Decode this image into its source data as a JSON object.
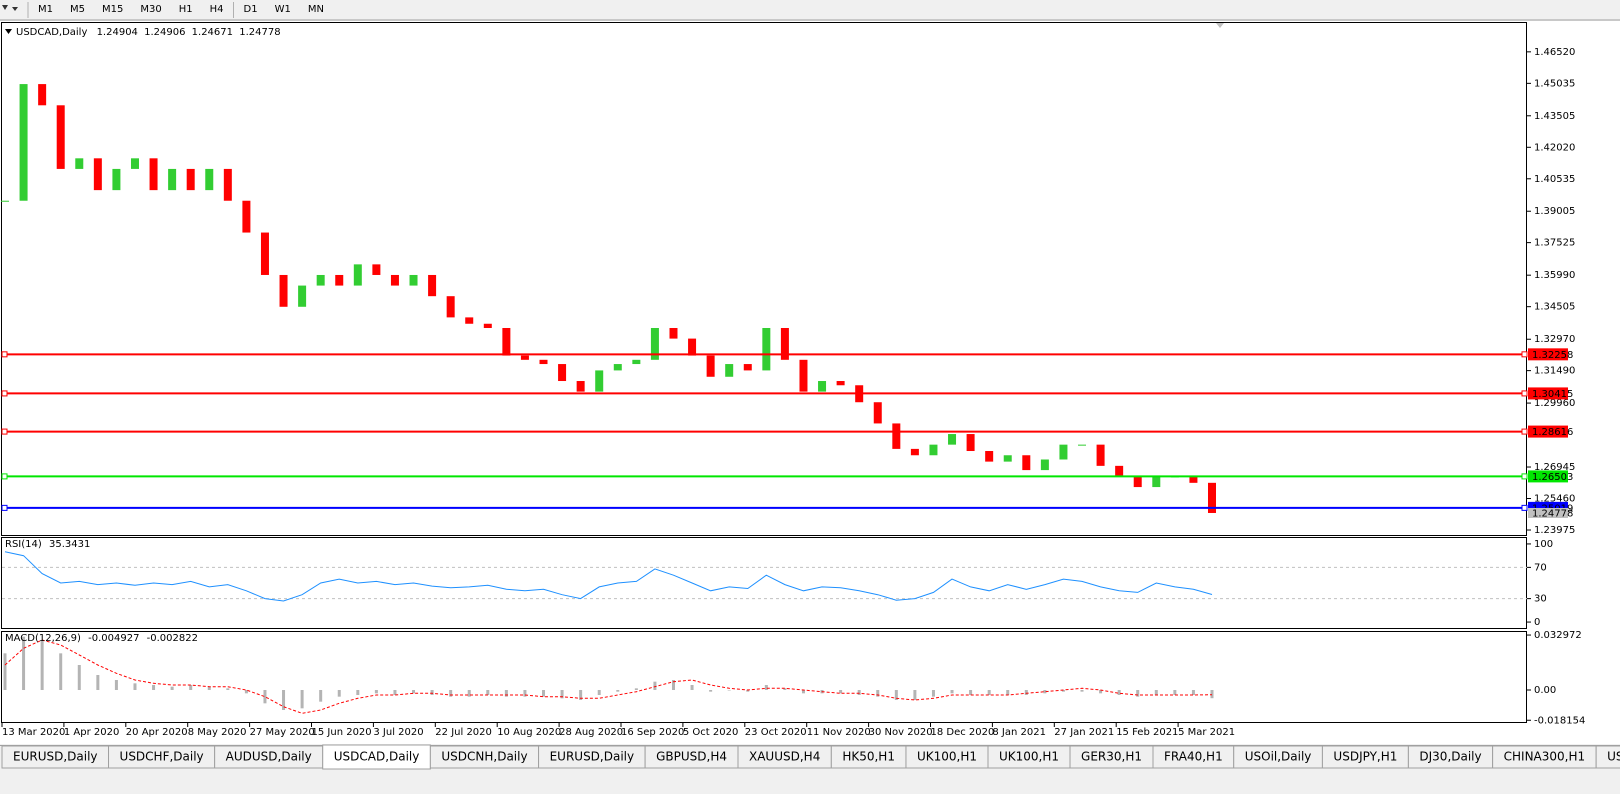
{
  "toolbar": {
    "timeframes": [
      "M1",
      "M5",
      "M15",
      "M30",
      "H1",
      "H4",
      "D1",
      "W1",
      "MN"
    ]
  },
  "chart_data": [
    {
      "type": "candlestick",
      "title": "USDCAD,Daily",
      "last_bar": {
        "open": 1.24904,
        "high": 1.24906,
        "low": 1.24671,
        "close": 1.24778
      },
      "closes": [
        1.395,
        1.45,
        1.44,
        1.41,
        1.415,
        1.4,
        1.41,
        1.415,
        1.4,
        1.41,
        1.4,
        1.41,
        1.395,
        1.38,
        1.36,
        1.345,
        1.355,
        1.36,
        1.355,
        1.365,
        1.36,
        1.355,
        1.36,
        1.35,
        1.34,
        1.337,
        1.335,
        1.322,
        1.32,
        1.318,
        1.31,
        1.305,
        1.315,
        1.318,
        1.32,
        1.335,
        1.33,
        1.322,
        1.312,
        1.318,
        1.315,
        1.335,
        1.32,
        1.305,
        1.31,
        1.308,
        1.3,
        1.29,
        1.278,
        1.275,
        1.28,
        1.285,
        1.277,
        1.272,
        1.275,
        1.268,
        1.273,
        1.28,
        1.28,
        1.27,
        1.265,
        1.26,
        1.265,
        1.265,
        1.262,
        1.24778
      ],
      "up_color": "#32cd32",
      "down_color": "#ff0000",
      "xtick_labels": [
        "13 Mar 2020",
        "1 Apr 2020",
        "20 Apr 2020",
        "8 May 2020",
        "27 May 2020",
        "15 Jun 2020",
        "3 Jul 2020",
        "22 Jul 2020",
        "10 Aug 2020",
        "28 Aug 2020",
        "16 Sep 2020",
        "5 Oct 2020",
        "23 Oct 2020",
        "11 Nov 2020",
        "30 Nov 2020",
        "18 Dec 2020",
        "8 Jan 2021",
        "27 Jan 2021",
        "15 Feb 2021",
        "5 Mar 2021"
      ],
      "ylim": [
        1.2374,
        1.4788
      ],
      "yticks": [
        {
          "value": 1.4652,
          "label": "1.46520"
        },
        1.45035,
        1.43505,
        {
          "value": 1.4202,
          "label": "1.42020"
        },
        1.40535,
        1.39005,
        1.37525,
        {
          "value": 1.3599,
          "label": "1.35990"
        },
        1.34505,
        {
          "value": 1.3297,
          "label": "1.32970"
        },
        {
          "value": 1.3149,
          "label": "1.31490"
        },
        {
          "value": 1.2996,
          "label": "1.29960"
        },
        1.26945,
        {
          "value": 1.2546,
          "label": "1.25460"
        },
        1.23975
      ],
      "hlines": [
        {
          "value": 1.32258,
          "color": "#ff0000"
        },
        {
          "value": 1.30415,
          "color": "#ff0000"
        },
        {
          "value": 1.28616,
          "color": "#ff0000"
        },
        {
          "value": 1.26503,
          "color": "#00e600"
        },
        {
          "value": 1.25019,
          "color": "#0000ff"
        }
      ]
    },
    {
      "type": "line",
      "title": "RSI(14)",
      "current": 35.3431,
      "color": "#1e90ff",
      "values": [
        90,
        85,
        62,
        50,
        52,
        48,
        50,
        47,
        50,
        48,
        52,
        45,
        48,
        40,
        30,
        27,
        35,
        50,
        55,
        50,
        52,
        48,
        50,
        46,
        44,
        45,
        47,
        42,
        40,
        42,
        35,
        30,
        45,
        50,
        52,
        68,
        60,
        50,
        40,
        45,
        43,
        60,
        48,
        40,
        45,
        44,
        40,
        35,
        28,
        30,
        38,
        55,
        45,
        40,
        48,
        42,
        48,
        55,
        52,
        45,
        40,
        38,
        50,
        45,
        42,
        35.3431
      ],
      "ylim": [
        -7.6,
        107.6
      ],
      "yticks": [
        100,
        70,
        30,
        0
      ],
      "levels": [
        70,
        30
      ]
    },
    {
      "type": "macd",
      "title": "MACD(12,26,9)",
      "current": {
        "main": -0.004927,
        "signal": -0.002822
      },
      "series": [
        {
          "name": "main",
          "color": "#b4b4b4",
          "values": [
            0.022,
            0.032,
            0.03,
            0.022,
            0.015,
            0.009,
            0.006,
            0.004,
            0.003,
            0.002,
            0.003,
            0.002,
            0.001,
            -0.002,
            -0.008,
            -0.012,
            -0.011,
            -0.007,
            -0.004,
            -0.003,
            -0.002,
            -0.003,
            -0.002,
            -0.003,
            -0.004,
            -0.004,
            -0.003,
            -0.004,
            -0.004,
            -0.004,
            -0.005,
            -0.006,
            -0.003,
            -0.001,
            0.001,
            0.005,
            0.006,
            0.003,
            -0.001,
            0,
            -0.001,
            0.003,
            0.001,
            -0.002,
            -0.002,
            -0.002,
            -0.003,
            -0.004,
            -0.006,
            -0.006,
            -0.004,
            -0.002,
            -0.003,
            -0.003,
            -0.003,
            -0.003,
            -0.002,
            -0.001,
            -0.001,
            -0.002,
            -0.003,
            -0.004,
            -0.003,
            -0.003,
            -0.003,
            -0.004927
          ]
        },
        {
          "name": "signal",
          "color": "#ff0000",
          "values": [
            0.015,
            0.025,
            0.03,
            0.027,
            0.021,
            0.015,
            0.01,
            0.006,
            0.004,
            0.003,
            0.003,
            0.002,
            0.002,
            0,
            -0.004,
            -0.01,
            -0.014,
            -0.012,
            -0.008,
            -0.005,
            -0.003,
            -0.003,
            -0.002,
            -0.002,
            -0.003,
            -0.003,
            -0.003,
            -0.003,
            -0.003,
            -0.004,
            -0.004,
            -0.005,
            -0.005,
            -0.003,
            -0.001,
            0.002,
            0.005,
            0.006,
            0.003,
            0.001,
            0,
            0.001,
            0.001,
            0,
            -0.001,
            -0.002,
            -0.002,
            -0.003,
            -0.005,
            -0.006,
            -0.005,
            -0.003,
            -0.003,
            -0.003,
            -0.003,
            -0.002,
            -0.001,
            0,
            0.001,
            0,
            -0.002,
            -0.003,
            -0.003,
            -0.003,
            -0.003,
            -0.002822
          ]
        }
      ],
      "ylim": [
        -0.0192,
        0.0348
      ],
      "yticks": [
        0.032972,
        {
          "value": 0,
          "label": "0.00"
        },
        -0.018154
      ]
    }
  ],
  "tabs": [
    "EURUSD,Daily",
    "USDCHF,Daily",
    "AUDUSD,Daily",
    "USDCAD,Daily",
    "USDCNH,Daily",
    "EURUSD,Daily",
    "GBPUSD,H4",
    "XAUUSD,H4",
    "HK50,H1",
    "UK100,H1",
    "UK100,H1",
    "GER30,H1",
    "FRA40,H1",
    "USOil,Daily",
    "USDJPY,H1",
    "DJ30,Daily",
    "CHINA300,H1",
    "USOil,..."
  ],
  "active_tab": 3
}
